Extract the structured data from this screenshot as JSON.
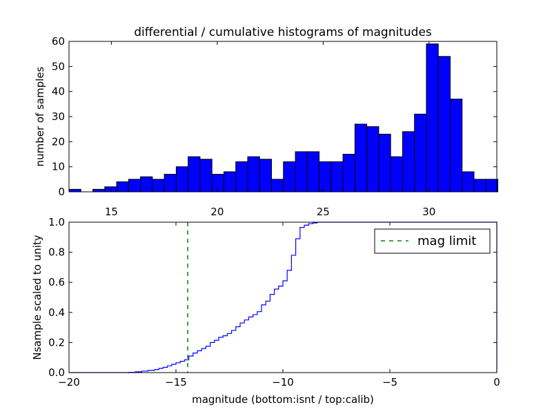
{
  "chart_data": [
    {
      "type": "bar",
      "title": "differential / cumulative histograms of magnitudes",
      "xlabel": "",
      "ylabel": "number of samples",
      "xlim": [
        13.0,
        33.2
      ],
      "ylim": [
        0,
        60
      ],
      "xticks": [
        15,
        20,
        25,
        30
      ],
      "yticks": [
        0,
        10,
        20,
        30,
        40,
        50,
        60
      ],
      "bin_start": 13.0,
      "bin_width": 0.5625,
      "values": [
        1,
        0,
        1,
        2,
        4,
        5,
        6,
        5,
        7,
        10,
        14,
        13,
        7,
        8,
        12,
        14,
        13,
        5,
        12,
        16,
        16,
        12,
        12,
        15,
        27,
        26,
        23,
        14,
        24,
        31,
        59,
        54,
        37,
        8,
        5,
        5
      ],
      "colors": {
        "bar": "#0000ff",
        "edge": "#000000"
      }
    },
    {
      "type": "line",
      "xlabel": "magnitude (bottom:isnt / top:calib)",
      "ylabel": "Nsample scaled to unity",
      "xlim": [
        -20,
        0
      ],
      "ylim": [
        0.0,
        1.0
      ],
      "xticks": [
        -20,
        -15,
        -10,
        -5,
        0
      ],
      "xtick_labels": [
        "−20",
        "−15",
        "−10",
        "−5",
        "0"
      ],
      "yticks": [
        0.0,
        0.2,
        0.4,
        0.6,
        0.8,
        1.0
      ],
      "ytick_labels": [
        "0.0",
        "0.2",
        "0.4",
        "0.6",
        "0.8",
        "1.0"
      ],
      "series": [
        {
          "name": "cumulative",
          "style": "steps",
          "color": "#0000ff",
          "x": [
            -20,
            -17.2,
            -16.9,
            -16.6,
            -16.3,
            -16.0,
            -15.8,
            -15.6,
            -15.4,
            -15.2,
            -15.0,
            -14.8,
            -14.6,
            -14.4,
            -14.2,
            -14.0,
            -13.8,
            -13.6,
            -13.4,
            -13.2,
            -13.0,
            -12.8,
            -12.6,
            -12.4,
            -12.2,
            -12.0,
            -11.8,
            -11.6,
            -11.4,
            -11.2,
            -11.0,
            -10.8,
            -10.6,
            -10.4,
            -10.2,
            -10.0,
            -9.8,
            -9.6,
            -9.4,
            -9.2,
            -9.0,
            -8.8,
            -8.6,
            -8.4,
            -8.2,
            0.0
          ],
          "y": [
            0.0,
            0.002,
            0.005,
            0.01,
            0.015,
            0.02,
            0.028,
            0.035,
            0.045,
            0.055,
            0.065,
            0.075,
            0.085,
            0.11,
            0.13,
            0.145,
            0.16,
            0.175,
            0.2,
            0.215,
            0.235,
            0.245,
            0.26,
            0.28,
            0.305,
            0.33,
            0.35,
            0.37,
            0.385,
            0.405,
            0.45,
            0.475,
            0.52,
            0.555,
            0.575,
            0.61,
            0.68,
            0.78,
            0.89,
            0.965,
            0.98,
            0.99,
            0.995,
            1.0,
            1.0,
            1.0
          ]
        }
      ],
      "vline": {
        "x": -14.45,
        "label": "mag limit",
        "color": "#008000",
        "style": "dashed"
      },
      "legend": {
        "position": "top-right",
        "entries": [
          "mag limit"
        ]
      }
    }
  ]
}
